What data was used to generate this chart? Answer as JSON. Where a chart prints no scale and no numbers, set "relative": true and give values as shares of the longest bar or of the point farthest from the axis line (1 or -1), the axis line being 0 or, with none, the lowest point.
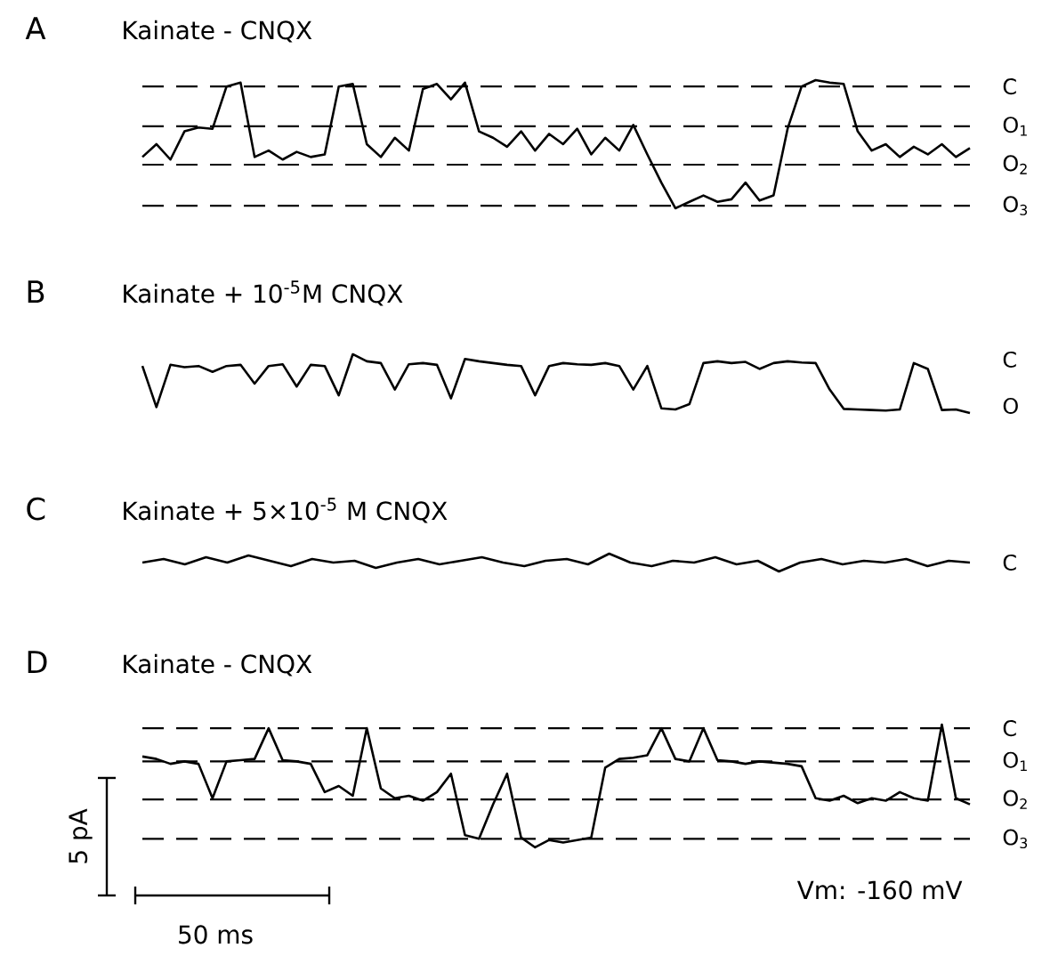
{
  "chart_data": [
    {
      "type": "line",
      "title": "Kainate - CNQX",
      "relative": true,
      "categories": [
        null,
        null,
        null,
        null,
        null,
        null,
        null,
        null,
        null,
        null,
        null,
        null,
        null,
        null,
        null,
        null,
        null,
        null,
        null,
        null,
        null,
        null,
        null,
        null,
        null,
        null,
        null,
        null,
        null,
        null,
        null,
        null,
        null,
        null,
        null,
        null,
        null,
        null,
        null,
        null,
        null,
        null,
        null,
        null,
        null,
        null,
        null,
        null,
        null,
        null,
        null,
        null,
        null,
        null,
        null,
        null,
        null,
        null,
        null,
        null
      ],
      "series": [
        {
          "color": "#000000",
          "values": [
            0.4,
            0.5,
            0.38,
            0.6,
            0.63,
            0.62,
            0.95,
            0.98,
            0.4,
            0.45,
            0.38,
            0.44,
            0.4,
            0.42,
            0.95,
            0.97,
            0.5,
            0.4,
            0.55,
            0.45,
            0.93,
            0.97,
            0.85,
            0.98,
            0.6,
            0.55,
            0.48,
            0.6,
            0.45,
            0.58,
            0.5,
            0.62,
            0.42,
            0.55,
            0.45,
            0.65,
            0.42,
            0.2,
            0.0,
            0.05,
            0.1,
            0.05,
            0.07,
            0.2,
            0.06,
            0.1,
            0.62,
            0.95,
            1.0,
            0.98,
            0.97,
            0.6,
            0.45,
            0.5,
            0.4,
            0.48,
            0.42,
            0.5,
            0.4,
            0.47
          ]
        }
      ],
      "ref_lines": [
        {
          "axis": "y",
          "value": 0.95,
          "label": "C",
          "line_style": "dashed"
        },
        {
          "axis": "y",
          "value": 0.64,
          "label": "O$_{1}$",
          "line_style": "dashed"
        },
        {
          "axis": "y",
          "value": 0.34,
          "label": "O$_{2}$",
          "line_style": "dashed"
        },
        {
          "axis": "y",
          "value": 0.02,
          "label": "O$_{3}$",
          "line_style": "dashed"
        }
      ],
      "annotations": [
        "A"
      ]
    },
    {
      "type": "line",
      "title": "Kainate + 10$^{-5}$M CNQX",
      "relative": true,
      "categories": [
        null,
        null,
        null,
        null,
        null,
        null,
        null,
        null,
        null,
        null,
        null,
        null,
        null,
        null,
        null,
        null,
        null,
        null,
        null,
        null,
        null,
        null,
        null,
        null,
        null,
        null,
        null,
        null,
        null,
        null,
        null,
        null,
        null,
        null,
        null,
        null,
        null,
        null,
        null,
        null,
        null,
        null,
        null,
        null,
        null,
        null,
        null,
        null,
        null,
        null,
        null,
        null,
        null,
        null,
        null,
        null,
        null,
        null,
        null,
        null
      ],
      "series": [
        {
          "color": "#000000",
          "values": [
            0.8,
            0.1,
            0.82,
            0.78,
            0.8,
            0.7,
            0.8,
            0.82,
            0.5,
            0.8,
            0.83,
            0.45,
            0.82,
            0.8,
            0.3,
            1.0,
            0.88,
            0.85,
            0.4,
            0.83,
            0.85,
            0.82,
            0.25,
            0.92,
            0.88,
            0.85,
            0.82,
            0.8,
            0.3,
            0.8,
            0.85,
            0.83,
            0.82,
            0.85,
            0.8,
            0.4,
            0.8,
            0.08,
            0.06,
            0.15,
            0.85,
            0.88,
            0.85,
            0.87,
            0.75,
            0.85,
            0.88,
            0.86,
            0.85,
            0.4,
            0.07,
            0.06,
            0.05,
            0.04,
            0.06,
            0.85,
            0.75,
            0.05,
            0.06,
            0.0
          ]
        }
      ],
      "annotations": [
        "B",
        "C",
        "O"
      ]
    },
    {
      "type": "line",
      "title": "Kainate + 5×10$^{-5}$ M CNQX",
      "relative": true,
      "categories": [
        null,
        null,
        null,
        null,
        null,
        null,
        null,
        null,
        null,
        null,
        null,
        null,
        null,
        null,
        null,
        null,
        null,
        null,
        null,
        null,
        null,
        null,
        null,
        null,
        null,
        null,
        null,
        null,
        null,
        null,
        null,
        null,
        null,
        null,
        null,
        null,
        null,
        null,
        null,
        null
      ],
      "series": [
        {
          "color": "#000000",
          "values": [
            0.5,
            0.7,
            0.4,
            0.8,
            0.5,
            0.9,
            0.6,
            0.3,
            0.7,
            0.5,
            0.6,
            0.2,
            0.5,
            0.7,
            0.4,
            0.6,
            0.8,
            0.5,
            0.3,
            0.6,
            0.7,
            0.4,
            1.0,
            0.5,
            0.3,
            0.6,
            0.5,
            0.8,
            0.4,
            0.6,
            0.0,
            0.5,
            0.7,
            0.4,
            0.6,
            0.5,
            0.7,
            0.3,
            0.6,
            0.5
          ]
        }
      ],
      "annotations": [
        "C",
        "C"
      ]
    },
    {
      "type": "line",
      "title": "Kainate - CNQX",
      "relative": true,
      "categories": [
        null,
        null,
        null,
        null,
        null,
        null,
        null,
        null,
        null,
        null,
        null,
        null,
        null,
        null,
        null,
        null,
        null,
        null,
        null,
        null,
        null,
        null,
        null,
        null,
        null,
        null,
        null,
        null,
        null,
        null,
        null,
        null,
        null,
        null,
        null,
        null,
        null,
        null,
        null,
        null,
        null,
        null,
        null,
        null,
        null,
        null,
        null,
        null,
        null,
        null,
        null,
        null,
        null,
        null,
        null,
        null,
        null,
        null,
        null,
        null
      ],
      "series": [
        {
          "color": "#000000",
          "values": [
            0.74,
            0.72,
            0.68,
            0.7,
            0.68,
            0.4,
            0.7,
            0.71,
            0.72,
            0.97,
            0.71,
            0.7,
            0.68,
            0.45,
            0.5,
            0.42,
            0.97,
            0.48,
            0.4,
            0.42,
            0.38,
            0.45,
            0.6,
            0.1,
            0.07,
            0.35,
            0.6,
            0.08,
            0.0,
            0.06,
            0.04,
            0.06,
            0.08,
            0.65,
            0.72,
            0.73,
            0.75,
            0.97,
            0.72,
            0.7,
            0.97,
            0.71,
            0.7,
            0.68,
            0.7,
            0.69,
            0.68,
            0.66,
            0.4,
            0.38,
            0.42,
            0.36,
            0.4,
            0.38,
            0.45,
            0.4,
            0.38,
            1.0,
            0.4,
            0.35
          ]
        }
      ],
      "ref_lines": [
        {
          "axis": "y",
          "value": 0.97,
          "label": "C",
          "line_style": "dashed"
        },
        {
          "axis": "y",
          "value": 0.7,
          "label": "O$_{1}$",
          "line_style": "dashed"
        },
        {
          "axis": "y",
          "value": 0.39,
          "label": "O$_{2}$",
          "line_style": "dashed"
        },
        {
          "axis": "y",
          "value": 0.07,
          "label": "O$_{3}$",
          "line_style": "dashed"
        }
      ],
      "annotations": [
        "D",
        "5 pA",
        "50 ms",
        "Vm: -160 mV"
      ]
    }
  ]
}
